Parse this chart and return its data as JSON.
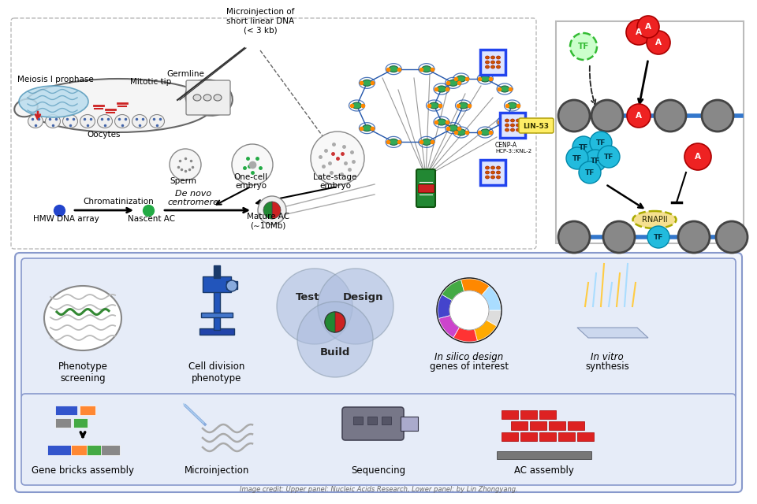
{
  "bg_color": "#ffffff",
  "upper_panel": {
    "labels": {
      "germline": "Germline",
      "meiosis": "Meiosis I prophase",
      "mitotic": "Mitotic tip",
      "sperm": "Sperm",
      "one_cell": "One-cell\nembryo",
      "late_stage": "Late-stage\nembryo",
      "oocytes": "Oocytes",
      "chromatinization": "Chromatinization",
      "hmw": "HMW DNA array",
      "nascent": "Nascent AC",
      "mature": "Mature AC\n(∼10Mb)",
      "de_novo": "De novo\ncentromere",
      "microinjection": "Microinjection of\nshort linear DNA\n(< 3 kb)",
      "lin53": "LIN-53",
      "cenp": "CENP-A"
    }
  },
  "right_panel": {
    "upper": {
      "tf_color": "#33bb33",
      "tf_face": "#ccffcc",
      "a_color": "#ee2222",
      "chromatin_color": "#888888",
      "line_color": "#3377cc",
      "tf_label": "TF",
      "a_label": "A"
    },
    "lower": {
      "tf_color": "#22bbdd",
      "tf_face": "#aaeeff",
      "a_color": "#ee2222",
      "chromatin_color": "#888888",
      "line_color": "#3377cc",
      "rnapii_color": "#f5e090",
      "tf_label": "TF",
      "a_label": "A",
      "rnapii_label": "RNAPII"
    }
  },
  "lower_panel": {
    "trefoil_color": "#aabbdd",
    "center_labels": [
      "Test",
      "Design",
      "Build"
    ],
    "bottom_labels": [
      "Gene bricks assembly",
      "Microinjection",
      "Sequencing",
      "AC assembly"
    ],
    "top_labels_left": [
      "Phenotype\nscreening",
      "Cell division\nphenotype"
    ],
    "top_labels_right": [
      "In silico design\ngenes of interest",
      "In vitro\nsynthesis"
    ]
  },
  "credit_text": "Image credit: Upper panel: Nucleic Acids Research, Lower panel: by Lin Zhongyang."
}
